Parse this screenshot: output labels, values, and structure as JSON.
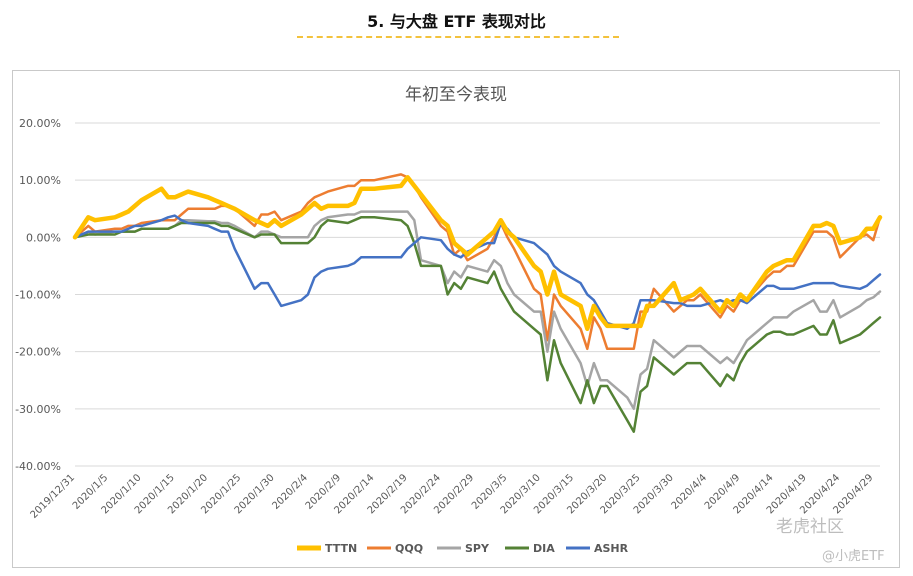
{
  "section": {
    "title": "5.   与大盘 ETF 表现对比"
  },
  "chart_data": {
    "type": "line",
    "title": "年初至今表现",
    "xlabel": "",
    "ylabel": "",
    "ylim": [
      -40,
      20
    ],
    "yticks": [
      20,
      10,
      0,
      -10,
      -20,
      -30,
      -40
    ],
    "ytick_labels": [
      "20.00%",
      "10.00%",
      "0.00%",
      "-10.00%",
      "-20.00%",
      "-30.00%",
      "-40.00%"
    ],
    "xtick_labels": [
      "2019/12/31",
      "2020/1/5",
      "2020/1/10",
      "2020/1/15",
      "2020/1/20",
      "2020/1/25",
      "2020/1/30",
      "2020/2/4",
      "2020/2/9",
      "2020/2/14",
      "2020/2/19",
      "2020/2/24",
      "2020/2/29",
      "2020/3/5",
      "2020/3/10",
      "2020/3/15",
      "2020/3/20",
      "2020/3/25",
      "2020/3/30",
      "2020/4/4",
      "2020/4/9",
      "2020/4/14",
      "2020/4/19",
      "2020/4/24",
      "2020/4/29"
    ],
    "xtick_days": [
      0,
      5,
      10,
      15,
      20,
      25,
      30,
      35,
      40,
      45,
      50,
      55,
      60,
      65,
      70,
      75,
      80,
      85,
      90,
      95,
      100,
      105,
      110,
      115,
      120
    ],
    "x_days": [
      0,
      2,
      3,
      6,
      7,
      8,
      9,
      10,
      13,
      14,
      15,
      16,
      17,
      20,
      21,
      22,
      23,
      24,
      27,
      28,
      29,
      30,
      31,
      34,
      35,
      36,
      37,
      38,
      41,
      42,
      43,
      44,
      45,
      49,
      50,
      51,
      52,
      55,
      56,
      57,
      58,
      59,
      62,
      63,
      64,
      65,
      66,
      69,
      70,
      71,
      72,
      73,
      76,
      77,
      78,
      79,
      80,
      83,
      84,
      85,
      86,
      87,
      90,
      91,
      92,
      93,
      94,
      97,
      98,
      99,
      100,
      101,
      104,
      105,
      106,
      107,
      108,
      111,
      112,
      113,
      114,
      115,
      118,
      119,
      120,
      121
    ],
    "grid": true,
    "legend_position": "bottom",
    "series": [
      {
        "name": "TTTN",
        "color": "#ffc000",
        "width": 4.5,
        "values": [
          0,
          3.5,
          3,
          3.5,
          4,
          4.5,
          5.5,
          6.5,
          8.5,
          7,
          7,
          7.5,
          8,
          7,
          6.5,
          6,
          5.5,
          5,
          3,
          2.5,
          2,
          3,
          2,
          4,
          5,
          6,
          5,
          5.5,
          5.5,
          6,
          8.5,
          8.5,
          8.5,
          9,
          10.5,
          9,
          7.5,
          3,
          2,
          -1,
          -2,
          -3,
          0,
          1,
          3,
          1,
          0,
          -5,
          -6,
          -10,
          -6,
          -10,
          -12,
          -16,
          -12,
          -14,
          -15.5,
          -15.5,
          -15.5,
          -15.5,
          -12,
          -12,
          -8,
          -11,
          -10.5,
          -10,
          -9,
          -13,
          -11,
          -12,
          -10,
          -11,
          -6,
          -5,
          -4.5,
          -4,
          -4,
          2,
          2,
          2.5,
          2,
          -1,
          0,
          1.5,
          1.5,
          3.5
        ]
      },
      {
        "name": "QQQ",
        "color": "#ed7d31",
        "width": 2.5,
        "values": [
          0,
          2,
          1,
          1.5,
          1.5,
          2,
          2,
          2.5,
          3,
          3,
          3,
          4,
          5,
          5,
          5,
          5.5,
          5.5,
          5,
          2,
          4,
          4,
          4.5,
          3,
          4.5,
          6,
          7,
          7.5,
          8,
          9,
          9,
          10,
          10,
          10,
          11,
          10.5,
          9,
          7,
          2,
          1,
          -3,
          -2,
          -4,
          -2,
          0,
          2.5,
          0,
          -2,
          -9,
          -10,
          -18,
          -10,
          -12,
          -16,
          -19.5,
          -14,
          -16,
          -19.5,
          -19.5,
          -19.5,
          -13,
          -13,
          -9,
          -13,
          -12,
          -11,
          -11,
          -10,
          -14,
          -12,
          -13,
          -11,
          -11,
          -7,
          -6,
          -6,
          -5,
          -5,
          1,
          1,
          1,
          0,
          -3.5,
          0,
          0.5,
          -0.5,
          3.5
        ]
      },
      {
        "name": "SPY",
        "color": "#a5a5a5",
        "width": 2.5,
        "values": [
          0,
          1,
          0.5,
          1,
          1,
          1,
          1,
          1.5,
          1.5,
          1.5,
          2,
          3,
          3,
          2.8,
          2.8,
          2.5,
          2.5,
          2,
          0,
          1,
          1,
          0.5,
          0,
          0,
          0,
          2,
          3,
          3.5,
          4,
          4,
          4.5,
          4.5,
          4.5,
          4.5,
          4.5,
          3,
          -4,
          -5,
          -8,
          -6,
          -7,
          -5,
          -6,
          -4,
          -5,
          -8,
          -10,
          -13,
          -13,
          -20,
          -13,
          -16,
          -22,
          -26,
          -22,
          -25,
          -25,
          -28,
          -30,
          -24,
          -23,
          -18,
          -21,
          -20,
          -19,
          -19,
          -19,
          -22,
          -21,
          -22,
          -20,
          -18,
          -15,
          -14,
          -14,
          -14,
          -13,
          -11,
          -13,
          -13,
          -11,
          -14,
          -12,
          -11,
          -10.5,
          -9.5
        ]
      },
      {
        "name": "DIA",
        "color": "#548235",
        "width": 2.5,
        "values": [
          0,
          0.5,
          0.5,
          0.5,
          1,
          1,
          1,
          1.5,
          1.5,
          1.5,
          2,
          2.5,
          2.5,
          2.5,
          2.5,
          2,
          2,
          1.5,
          0,
          0.5,
          0.5,
          0.5,
          -1,
          -1,
          -1,
          0,
          2,
          3,
          2.5,
          3,
          3.5,
          3.5,
          3.5,
          3,
          2,
          -1,
          -5,
          -5,
          -10,
          -8,
          -9,
          -7,
          -8,
          -6,
          -9,
          -11,
          -13,
          -16,
          -17,
          -25,
          -18,
          -22,
          -29,
          -25,
          -29,
          -26,
          -26,
          -32,
          -34,
          -27,
          -26,
          -21,
          -24,
          -23,
          -22,
          -22,
          -22,
          -26,
          -24,
          -25,
          -22,
          -20,
          -17,
          -16.5,
          -16.5,
          -17,
          -17,
          -15.5,
          -17,
          -17,
          -14.5,
          -18.5,
          -17,
          -16,
          -15,
          -14
        ]
      },
      {
        "name": "ASHR",
        "color": "#4472c4",
        "width": 2.5,
        "values": [
          0,
          1,
          1,
          1,
          1,
          1.5,
          2,
          2,
          3,
          3.5,
          3.8,
          3,
          2.5,
          2,
          1.5,
          1,
          1,
          -2,
          -9,
          -8,
          -8,
          -10,
          -12,
          -11,
          -10,
          -7,
          -6,
          -5.5,
          -5,
          -4.5,
          -3.5,
          -3.5,
          -3.5,
          -3.5,
          -2,
          -1,
          0,
          -0.5,
          -2,
          -3,
          -3.5,
          -2.5,
          -1,
          -1,
          2.5,
          1.5,
          0,
          -1,
          -2,
          -3,
          -5,
          -6,
          -8,
          -10,
          -11,
          -13,
          -15,
          -16,
          -15,
          -11,
          -11,
          -11,
          -11.5,
          -11.5,
          -12,
          -12,
          -12,
          -11,
          -11.5,
          -11,
          -11,
          -11.5,
          -8.5,
          -8.5,
          -9,
          -9,
          -9,
          -8,
          -8,
          -8,
          -8,
          -8.5,
          -9,
          -8.5,
          -7.5,
          -6.5
        ]
      }
    ]
  },
  "watermark": {
    "line1": "老虎社区",
    "line2": "@小虎ETF"
  }
}
